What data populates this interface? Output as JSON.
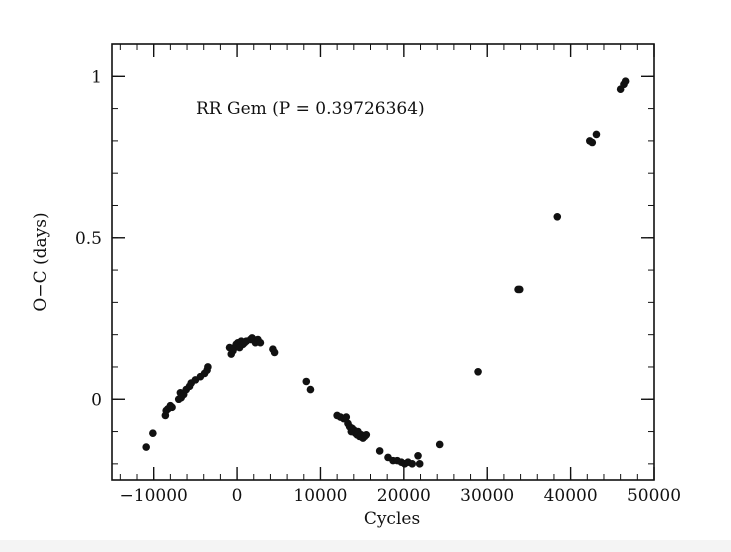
{
  "chart_data": {
    "type": "scatter",
    "title": "",
    "annotation": "RR Gem (P = 0.39726364)",
    "xlabel": "Cycles",
    "ylabel": "O−C (days)",
    "xlim": [
      -15000,
      50000
    ],
    "ylim": [
      -0.25,
      1.1
    ],
    "x_ticks": [
      -10000,
      0,
      10000,
      20000,
      30000,
      40000,
      50000
    ],
    "x_tick_labels": [
      "−10000",
      "0",
      "10000",
      "20000",
      "30000",
      "40000",
      "50000"
    ],
    "y_ticks": [
      0,
      0.5,
      1
    ],
    "y_tick_labels": [
      "0",
      "0.5",
      "1"
    ],
    "grid": false,
    "legend": "none",
    "marker_color": "#111111",
    "points": [
      [
        -10900,
        -0.148
      ],
      [
        -10100,
        -0.105
      ],
      [
        -8600,
        -0.05
      ],
      [
        -8500,
        -0.035
      ],
      [
        -8300,
        -0.03
      ],
      [
        -8000,
        -0.02
      ],
      [
        -7800,
        -0.025
      ],
      [
        -7000,
        0.0
      ],
      [
        -6800,
        0.02
      ],
      [
        -6700,
        0.005
      ],
      [
        -6400,
        0.015
      ],
      [
        -6100,
        0.03
      ],
      [
        -5700,
        0.04
      ],
      [
        -5500,
        0.05
      ],
      [
        -5000,
        0.06
      ],
      [
        -4400,
        0.07
      ],
      [
        -3900,
        0.08
      ],
      [
        -3600,
        0.09
      ],
      [
        -3500,
        0.1
      ],
      [
        -900,
        0.16
      ],
      [
        -700,
        0.14
      ],
      [
        -500,
        0.15
      ],
      [
        -300,
        0.16
      ],
      [
        -100,
        0.17
      ],
      [
        100,
        0.175
      ],
      [
        300,
        0.16
      ],
      [
        500,
        0.18
      ],
      [
        700,
        0.17
      ],
      [
        900,
        0.175
      ],
      [
        1100,
        0.18
      ],
      [
        1600,
        0.185
      ],
      [
        1800,
        0.19
      ],
      [
        2000,
        0.185
      ],
      [
        2200,
        0.175
      ],
      [
        2500,
        0.185
      ],
      [
        2800,
        0.175
      ],
      [
        4300,
        0.155
      ],
      [
        4500,
        0.145
      ],
      [
        8300,
        0.055
      ],
      [
        8800,
        0.03
      ],
      [
        12000,
        -0.05
      ],
      [
        12400,
        -0.055
      ],
      [
        12800,
        -0.06
      ],
      [
        13100,
        -0.055
      ],
      [
        13300,
        -0.075
      ],
      [
        13500,
        -0.085
      ],
      [
        13700,
        -0.1
      ],
      [
        13800,
        -0.09
      ],
      [
        14000,
        -0.095
      ],
      [
        14200,
        -0.105
      ],
      [
        14400,
        -0.11
      ],
      [
        14500,
        -0.1
      ],
      [
        14700,
        -0.115
      ],
      [
        14900,
        -0.11
      ],
      [
        15100,
        -0.12
      ],
      [
        15300,
        -0.115
      ],
      [
        15500,
        -0.11
      ],
      [
        17100,
        -0.16
      ],
      [
        18100,
        -0.18
      ],
      [
        18700,
        -0.19
      ],
      [
        19200,
        -0.19
      ],
      [
        19700,
        -0.195
      ],
      [
        20100,
        -0.2
      ],
      [
        20500,
        -0.195
      ],
      [
        21000,
        -0.2
      ],
      [
        21700,
        -0.175
      ],
      [
        21900,
        -0.2
      ],
      [
        24300,
        -0.14
      ],
      [
        28900,
        0.085
      ],
      [
        33700,
        0.34
      ],
      [
        33900,
        0.34
      ],
      [
        38400,
        0.565
      ],
      [
        42300,
        0.8
      ],
      [
        42600,
        0.795
      ],
      [
        43100,
        0.82
      ],
      [
        46000,
        0.96
      ],
      [
        46400,
        0.975
      ],
      [
        46600,
        0.985
      ]
    ]
  }
}
